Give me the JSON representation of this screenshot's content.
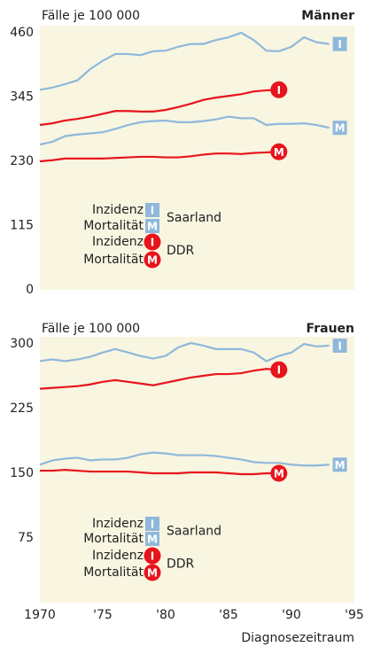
{
  "chart_data": [
    {
      "type": "line",
      "title": "Männer",
      "ylabel": "Fälle je 100 000",
      "xlim": [
        1970,
        1995
      ],
      "ylim": [
        0,
        460
      ],
      "yticks": [
        0,
        115,
        230,
        345,
        460
      ],
      "x": [
        1970,
        1971,
        1972,
        1973,
        1974,
        1975,
        1976,
        1977,
        1978,
        1979,
        1980,
        1981,
        1982,
        1983,
        1984,
        1985,
        1986,
        1987,
        1988,
        1989,
        1990,
        1991,
        1992,
        1993
      ],
      "series": [
        {
          "name": "Inzidenz",
          "group": "Saarland",
          "badge": "I",
          "color": "#8fb8da",
          "values": [
            358,
            362,
            368,
            375,
            395,
            410,
            422,
            422,
            420,
            427,
            428,
            435,
            440,
            440,
            447,
            452,
            460,
            447,
            428,
            427,
            435,
            452,
            443,
            440
          ]
        },
        {
          "name": "Mortalität",
          "group": "Saarland",
          "badge": "M",
          "color": "#8fb8da",
          "values": [
            260,
            265,
            275,
            278,
            280,
            282,
            288,
            295,
            300,
            302,
            303,
            300,
            300,
            302,
            305,
            310,
            307,
            307,
            295,
            297,
            297,
            298,
            295,
            290
          ]
        },
        {
          "name": "Inzidenz",
          "group": "DDR",
          "badge": "I",
          "color": "#e8141c",
          "values": [
            295,
            298,
            303,
            306,
            310,
            315,
            320,
            320,
            319,
            319,
            322,
            327,
            333,
            340,
            344,
            347,
            350,
            355,
            357,
            358,
            null,
            null,
            null,
            null
          ]
        },
        {
          "name": "Mortalität",
          "group": "DDR",
          "badge": "M",
          "color": "#e8141c",
          "values": [
            230,
            232,
            235,
            235,
            235,
            235,
            236,
            237,
            238,
            238,
            237,
            237,
            239,
            242,
            244,
            244,
            243,
            245,
            246,
            247,
            null,
            null,
            null,
            null
          ]
        }
      ]
    },
    {
      "type": "line",
      "title": "Frauen",
      "ylabel": "Fälle je 100 000",
      "xlabel": "Diagnosezeitraum",
      "xlim": [
        1970,
        1995
      ],
      "xticks": [
        1970,
        {
          "value": 1975,
          "label": "'75"
        },
        {
          "value": 1980,
          "label": "'80"
        },
        {
          "value": 1985,
          "label": "'85"
        },
        {
          "value": 1990,
          "label": "'90"
        },
        {
          "value": 1995,
          "label": "'95"
        }
      ],
      "ylim": [
        0,
        300
      ],
      "yticks": [
        75,
        150,
        225,
        300
      ],
      "x": [
        1970,
        1971,
        1972,
        1973,
        1974,
        1975,
        1976,
        1977,
        1978,
        1979,
        1980,
        1981,
        1982,
        1983,
        1984,
        1985,
        1986,
        1987,
        1988,
        1989,
        1990,
        1991,
        1992,
        1993
      ],
      "series": [
        {
          "name": "Inzidenz",
          "group": "Saarland",
          "badge": "I",
          "color": "#8fb8da",
          "values": [
            280,
            282,
            280,
            282,
            285,
            290,
            294,
            290,
            286,
            283,
            286,
            296,
            301,
            298,
            294,
            294,
            294,
            290,
            280,
            286,
            290,
            300,
            297,
            298
          ]
        },
        {
          "name": "Mortalität",
          "group": "Saarland",
          "badge": "M",
          "color": "#8fb8da",
          "values": [
            160,
            165,
            167,
            168,
            165,
            166,
            166,
            168,
            172,
            174,
            173,
            171,
            171,
            171,
            170,
            168,
            166,
            163,
            162,
            162,
            160,
            159,
            159,
            160
          ]
        },
        {
          "name": "Inzidenz",
          "group": "DDR",
          "badge": "I",
          "color": "#e8141c",
          "values": [
            248,
            249,
            250,
            251,
            253,
            256,
            258,
            256,
            254,
            252,
            255,
            258,
            261,
            263,
            265,
            265,
            266,
            269,
            271,
            270,
            null,
            null,
            null,
            null
          ]
        },
        {
          "name": "Mortalität",
          "group": "DDR",
          "badge": "M",
          "color": "#e8141c",
          "values": [
            153,
            153,
            154,
            153,
            152,
            152,
            152,
            152,
            151,
            150,
            150,
            150,
            151,
            151,
            151,
            150,
            149,
            149,
            150,
            150,
            null,
            null,
            null,
            null
          ]
        }
      ]
    }
  ]
}
